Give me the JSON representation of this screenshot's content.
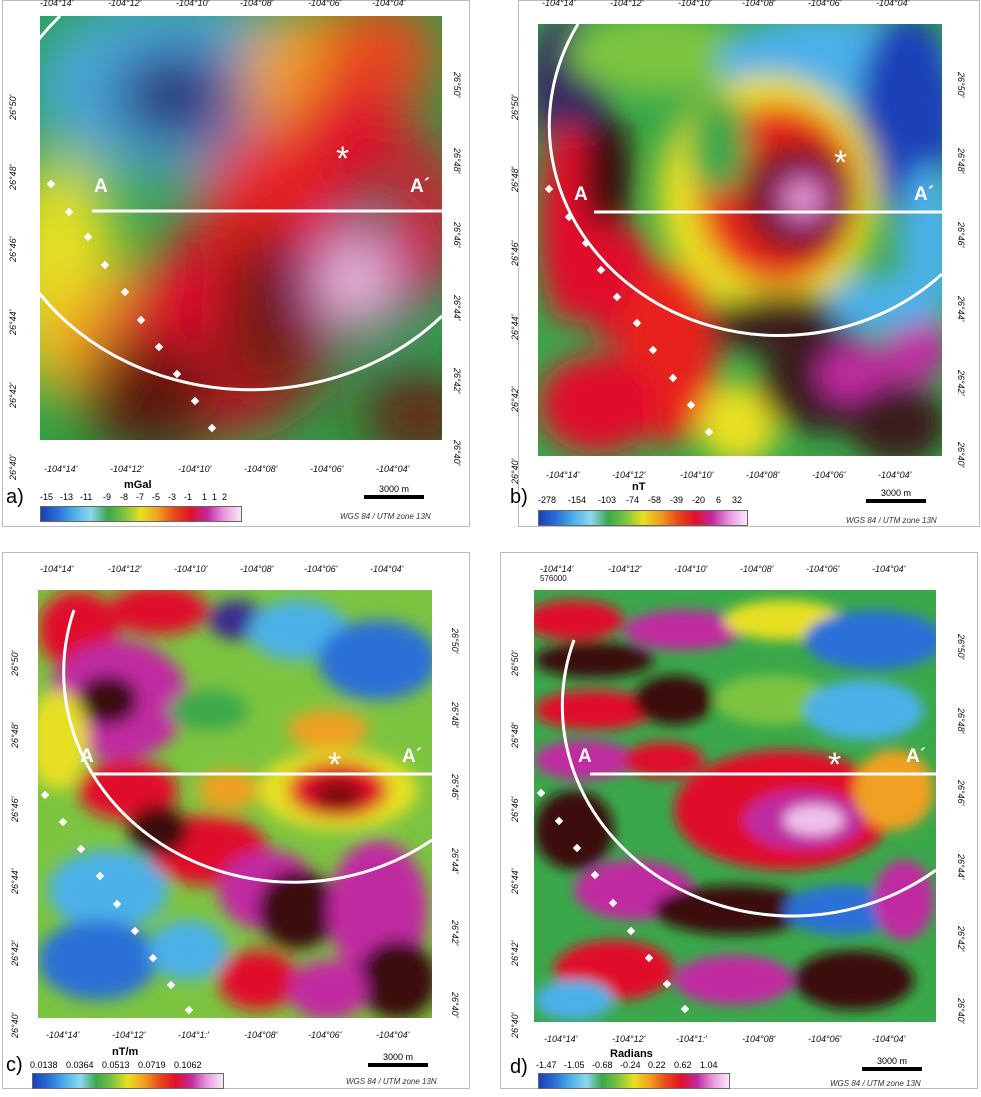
{
  "longitude_ticks": [
    "-104°14'",
    "-104°12'",
    "-104°10'",
    "-104°08'",
    "-104°06'",
    "-104°04'"
  ],
  "latitude_ticks": [
    "26°50'",
    "26°48'",
    "26°46'",
    "26°44'",
    "26°42'",
    "26°40'"
  ],
  "section": {
    "start": "A",
    "end": "A´",
    "marker": "*"
  },
  "scale_bar": "3000 m",
  "projection": "WGS 84 / UTM zone 13N",
  "panels": [
    {
      "letter": "a)",
      "unit": "mGal",
      "values": [
        "-15",
        "-13",
        "-11",
        "-9",
        "-8",
        "-7",
        "-5",
        "-3",
        "-1",
        "1",
        "1",
        "2"
      ]
    },
    {
      "letter": "b)",
      "unit": "nT",
      "values": [
        "-278",
        "-154",
        "-103",
        "-74",
        "-58",
        "-39",
        "-20",
        "6",
        "32"
      ]
    },
    {
      "letter": "c)",
      "unit": "nT/m",
      "values": [
        "0.0138",
        "0.0364",
        "0.0513",
        "0.0719",
        "0.1062"
      ]
    },
    {
      "letter": "d)",
      "unit": "Radians",
      "values": [
        "-1.47",
        "-1.05",
        "-0.68",
        "-0.24",
        "0.22",
        "0.62",
        "1.04"
      ],
      "corner_note": "576000"
    }
  ],
  "special_ticks": {
    "c_bottom_3": "-104°1:'",
    "d_bottom_3": "-104°1:'"
  },
  "colors": {
    "ramp": [
      "#1a3fb8",
      "#2a6fd6",
      "#4cb0e8",
      "#8fd6f0",
      "#3aa84a",
      "#7cc440",
      "#e8e020",
      "#f0a020",
      "#e84a1a",
      "#e0102a",
      "#7a1010",
      "#c02aa0",
      "#e89ae0",
      "#f8e8f8"
    ],
    "overlay": "#ffffff"
  }
}
